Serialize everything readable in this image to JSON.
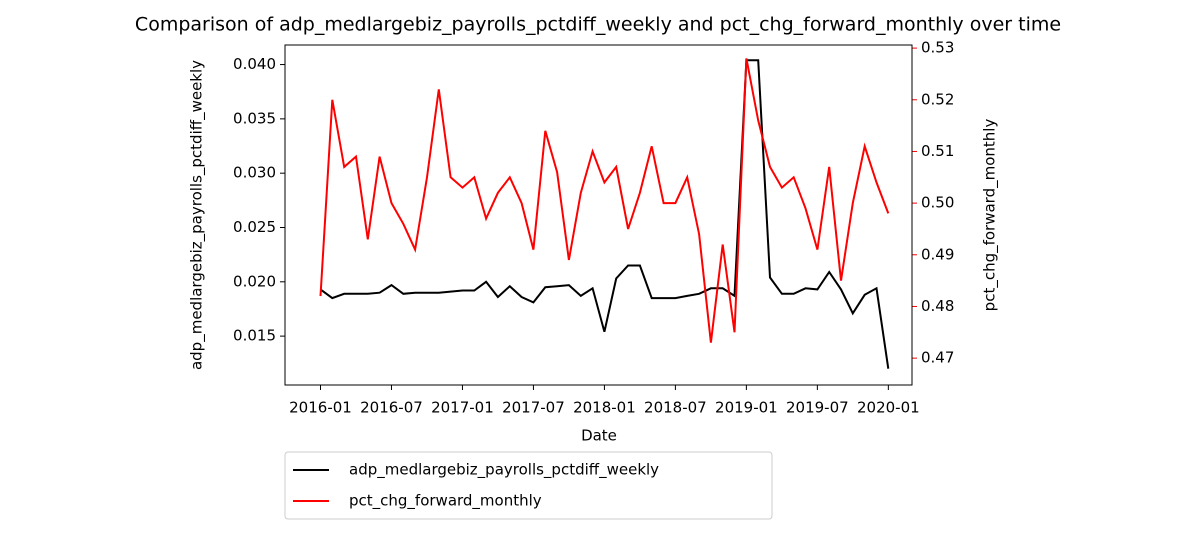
{
  "chart_data": {
    "type": "line",
    "title": "Comparison of adp_medlargebiz_payrolls_pctdiff_weekly and pct_chg_forward_monthly over time",
    "x_label": "Date",
    "y_label": "adp_medlargebiz_payrolls_pctdiff_weekly",
    "y2_label": "pct_chg_forward_monthly",
    "x": [
      "2016-01",
      "2016-02",
      "2016-03",
      "2016-04",
      "2016-05",
      "2016-06",
      "2016-07",
      "2016-08",
      "2016-09",
      "2016-10",
      "2016-11",
      "2016-12",
      "2017-01",
      "2017-02",
      "2017-03",
      "2017-04",
      "2017-05",
      "2017-06",
      "2017-07",
      "2017-08",
      "2017-09",
      "2017-10",
      "2017-11",
      "2017-12",
      "2018-01",
      "2018-02",
      "2018-03",
      "2018-04",
      "2018-05",
      "2018-06",
      "2018-07",
      "2018-08",
      "2018-09",
      "2018-10",
      "2018-11",
      "2018-12",
      "2019-01",
      "2019-02",
      "2019-03",
      "2019-04",
      "2019-05",
      "2019-06",
      "2019-07",
      "2019-08",
      "2019-09",
      "2019-10",
      "2019-11",
      "2019-12",
      "2020-01"
    ],
    "series": [
      {
        "name": "adp_medlargebiz_payrolls_pctdiff_weekly",
        "color": "#000000",
        "axis": "y",
        "values": [
          0.0193,
          0.0185,
          0.0189,
          0.0189,
          0.0189,
          0.019,
          0.0197,
          0.0189,
          0.019,
          0.019,
          0.019,
          0.0191,
          0.0192,
          0.0192,
          0.02,
          0.0186,
          0.0196,
          0.0186,
          0.0181,
          0.0195,
          0.0196,
          0.0197,
          0.0187,
          0.0194,
          0.0154,
          0.0203,
          0.0215,
          0.0215,
          0.0185,
          0.0185,
          0.0185,
          0.0187,
          0.0189,
          0.0194,
          0.0194,
          0.0187,
          0.0404,
          0.0404,
          0.0204,
          0.0189,
          0.0189,
          0.0194,
          0.0193,
          0.0209,
          0.0193,
          0.0171,
          0.0188,
          0.0194,
          0.012
        ]
      },
      {
        "name": "pct_chg_forward_monthly",
        "color": "#ff0000",
        "axis": "y2",
        "values": [
          0.482,
          0.52,
          0.507,
          0.509,
          0.493,
          0.509,
          0.5,
          0.496,
          0.491,
          0.505,
          0.522,
          0.505,
          0.503,
          0.505,
          0.497,
          0.502,
          0.505,
          0.5,
          0.491,
          0.514,
          0.506,
          0.489,
          0.502,
          0.51,
          0.504,
          0.507,
          0.495,
          0.502,
          0.511,
          0.5,
          0.5,
          0.505,
          0.494,
          0.473,
          0.492,
          0.475,
          0.528,
          0.516,
          0.507,
          0.503,
          0.505,
          0.499,
          0.491,
          0.507,
          0.485,
          0.5,
          0.511,
          0.504,
          0.498
        ]
      }
    ],
    "xlim": [
      "2015-10",
      "2020-03"
    ],
    "xticks": [
      "2016-01",
      "2016-07",
      "2017-01",
      "2017-07",
      "2018-01",
      "2018-07",
      "2019-01",
      "2019-07",
      "2020-01"
    ],
    "ylim": [
      0.0105,
      0.0418
    ],
    "yticks": [
      0.015,
      {
        "value": 0.02,
        "label": "0.020"
      },
      0.025,
      {
        "value": 0.03,
        "label": "0.030"
      },
      0.035,
      {
        "value": 0.04,
        "label": "0.040"
      }
    ],
    "y2lim": [
      0.4648,
      0.5306
    ],
    "y2ticks": [
      0.47,
      0.48,
      0.49,
      {
        "value": 0.5,
        "label": "0.50"
      },
      0.51,
      0.52,
      0.53
    ],
    "y2_color": "#ff0000",
    "legend": "below"
  }
}
